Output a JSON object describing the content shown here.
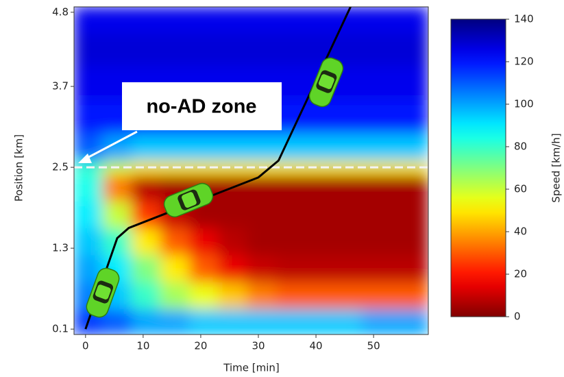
{
  "chart_data": {
    "type": "heatmap",
    "xlabel": "Time [min]",
    "ylabel": "Position [km]",
    "colorbar_label": "Speed [km/h]",
    "annotation": "no-AD zone",
    "xlim": [
      -2,
      59.5
    ],
    "xticks": [
      0,
      10,
      20,
      30,
      40,
      50
    ],
    "ylim": [
      0.02,
      4.88
    ],
    "yticks": [
      0.1,
      1.3,
      2.5,
      3.7,
      4.8
    ],
    "clim": [
      0,
      140
    ],
    "cticks": [
      0,
      20,
      40,
      60,
      80,
      100,
      120,
      140
    ],
    "colormap": "jet_r",
    "x_bins": [
      -2,
      3,
      8,
      13,
      18,
      23,
      28,
      33,
      38,
      43,
      48,
      53,
      59.5
    ],
    "y_bins": [
      0.02,
      0.4,
      0.8,
      1.2,
      1.6,
      2.0,
      2.4,
      2.6,
      3.0,
      3.5,
      4.0,
      4.5,
      4.88
    ],
    "z": [
      [
        115,
        110,
        100,
        100,
        95,
        95,
        95,
        95,
        95,
        95,
        100,
        100
      ],
      [
        105,
        95,
        80,
        65,
        55,
        45,
        35,
        30,
        30,
        30,
        30,
        30
      ],
      [
        100,
        90,
        70,
        50,
        30,
        15,
        10,
        8,
        8,
        8,
        8,
        8
      ],
      [
        95,
        80,
        50,
        30,
        15,
        8,
        5,
        5,
        5,
        5,
        5,
        5
      ],
      [
        90,
        60,
        25,
        10,
        5,
        5,
        5,
        5,
        5,
        5,
        5,
        5
      ],
      [
        85,
        35,
        8,
        5,
        5,
        5,
        5,
        5,
        5,
        5,
        5,
        5
      ],
      [
        80,
        60,
        50,
        50,
        50,
        50,
        50,
        50,
        50,
        50,
        50,
        50
      ],
      [
        110,
        100,
        95,
        95,
        95,
        95,
        95,
        95,
        95,
        95,
        95,
        95
      ],
      [
        120,
        120,
        120,
        120,
        120,
        120,
        120,
        120,
        120,
        120,
        120,
        120
      ],
      [
        125,
        125,
        125,
        125,
        125,
        125,
        125,
        125,
        125,
        125,
        125,
        125
      ],
      [
        128,
        128,
        128,
        128,
        128,
        128,
        128,
        128,
        128,
        128,
        128,
        128
      ],
      [
        125,
        125,
        125,
        125,
        125,
        125,
        125,
        125,
        125,
        125,
        125,
        125
      ]
    ],
    "zone_boundary": 2.5,
    "trajectory": {
      "x": [
        0,
        5.5,
        7.5,
        30,
        33.5,
        46
      ],
      "y": [
        0.1,
        1.45,
        1.6,
        2.35,
        2.6,
        4.88
      ]
    }
  }
}
